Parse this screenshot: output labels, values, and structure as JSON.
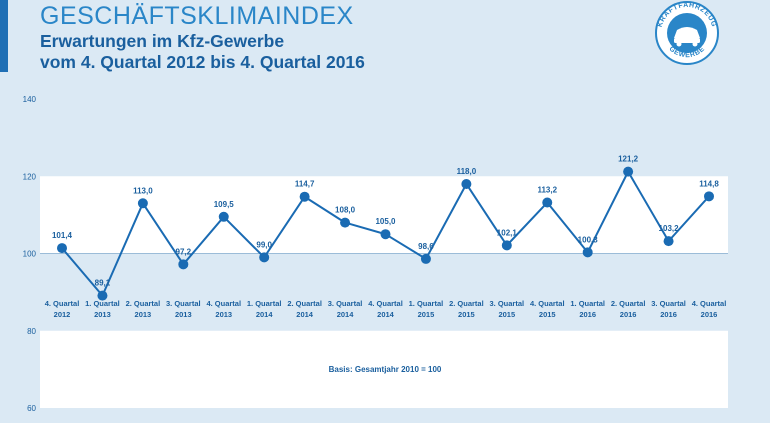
{
  "header": {
    "title": "GESCHÄFTSKLIMAINDEX",
    "subtitle_line1": "Erwartungen im Kfz-Gewerbe",
    "subtitle_line2": "vom 4. Quartal 2012 bis 4. Quartal 2016"
  },
  "logo": {
    "text_top": "KRAFTFAHRZEUG",
    "text_bottom": "GEWERBE"
  },
  "colors": {
    "line": "#1a6bb3",
    "text": "#1a5f9e",
    "background": "#dbe9f4",
    "band": "#ffffff"
  },
  "chart_data": {
    "type": "line",
    "ylim": [
      60,
      140
    ],
    "yticks": [
      "60",
      "80",
      "100",
      "120",
      "140"
    ],
    "bands": [
      [
        100,
        120
      ],
      [
        60,
        80
      ]
    ],
    "categories": [
      [
        "4. Quartal",
        "2012"
      ],
      [
        "1. Quartal",
        "2013"
      ],
      [
        "2. Quartal",
        "2013"
      ],
      [
        "3. Quartal",
        "2013"
      ],
      [
        "4. Quartal",
        "2013"
      ],
      [
        "1. Quartal",
        "2014"
      ],
      [
        "2. Quartal",
        "2014"
      ],
      [
        "3. Quartal",
        "2014"
      ],
      [
        "4. Quartal",
        "2014"
      ],
      [
        "1. Quartal",
        "2015"
      ],
      [
        "2. Quartal",
        "2015"
      ],
      [
        "3. Quartal",
        "2015"
      ],
      [
        "4. Quartal",
        "2015"
      ],
      [
        "1. Quartal",
        "2016"
      ],
      [
        "2. Quartal",
        "2016"
      ],
      [
        "3. Quartal",
        "2016"
      ],
      [
        "4. Quartal",
        "2016"
      ]
    ],
    "values": [
      101.4,
      89.1,
      113.0,
      97.2,
      109.5,
      99.0,
      114.7,
      108.0,
      105.0,
      98.6,
      118.0,
      102.1,
      113.2,
      100.3,
      121.2,
      103.2,
      114.8
    ],
    "labels": [
      "101,4",
      "89,1",
      "113,0",
      "97,2",
      "109,5",
      "99,0",
      "114,7",
      "108,0",
      "105,0",
      "98,6",
      "118,0",
      "102,1",
      "113,2",
      "100,3",
      "121,2",
      "103,2",
      "114,8"
    ],
    "annotation": "Basis: Gesamtjahr 2010 = 100"
  }
}
